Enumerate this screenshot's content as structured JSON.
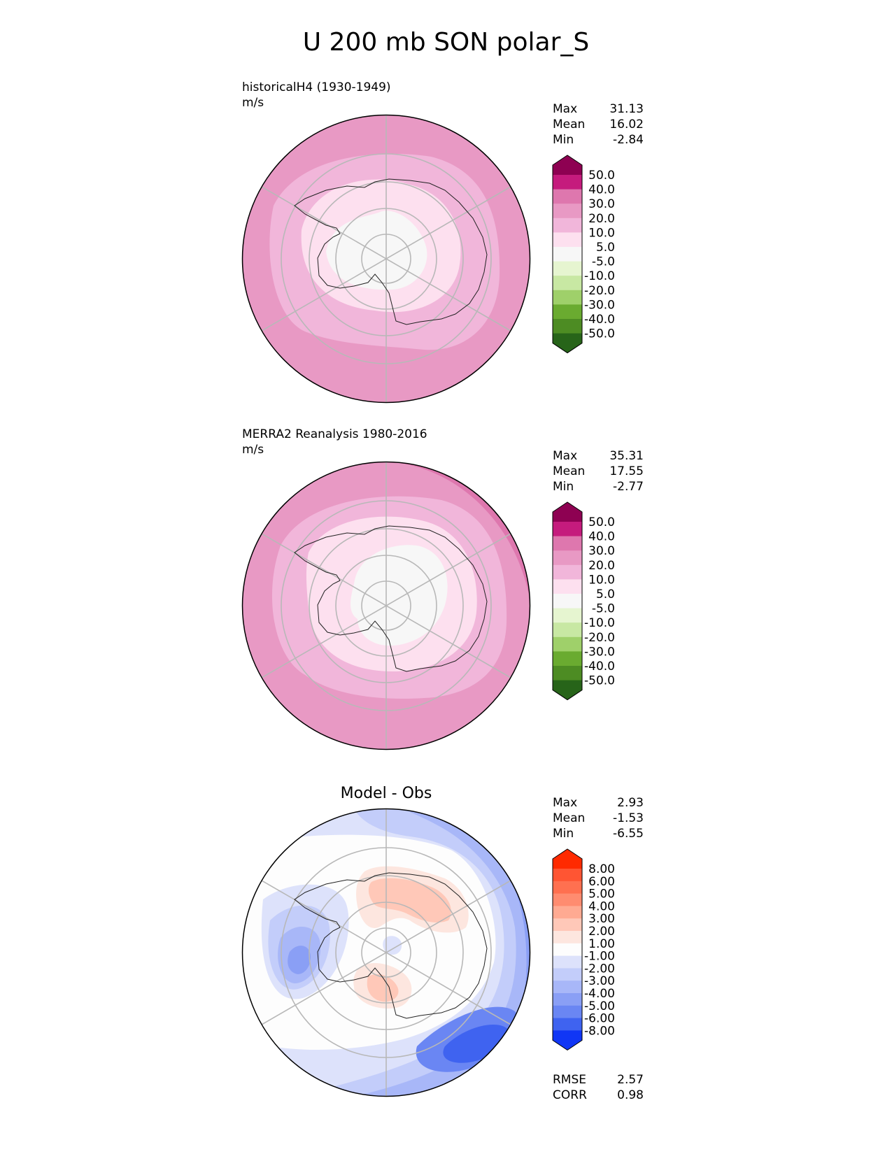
{
  "figure_title": "U 200 mb SON polar_S",
  "panels": {
    "model": {
      "title": "historicalH4 (1930-1949)",
      "units": "m/s",
      "stats": [
        {
          "label": "Max",
          "value": "31.13"
        },
        {
          "label": "Mean",
          "value": "16.02"
        },
        {
          "label": "Min",
          "value": "-2.84"
        }
      ]
    },
    "obs": {
      "title": "MERRA2 Reanalysis 1980-2016",
      "units": "m/s",
      "stats": [
        {
          "label": "Max",
          "value": "35.31"
        },
        {
          "label": "Mean",
          "value": "17.55"
        },
        {
          "label": "Min",
          "value": "-2.77"
        }
      ]
    },
    "diff": {
      "title": "Model - Obs",
      "stats": [
        {
          "label": "Max",
          "value": "2.93"
        },
        {
          "label": "Mean",
          "value": "-1.53"
        },
        {
          "label": "Min",
          "value": "-6.55"
        }
      ],
      "metrics": [
        {
          "label": "RMSE",
          "value": "2.57"
        },
        {
          "label": "CORR",
          "value": "0.98"
        }
      ]
    }
  },
  "colorbars": {
    "main": {
      "labels": [
        "50.0",
        "40.0",
        "30.0",
        "20.0",
        "10.0",
        "5.0",
        "-5.0",
        "-10.0",
        "-20.0",
        "-30.0",
        "-40.0",
        "-50.0"
      ],
      "colors": [
        "#8e0152",
        "#c51b7d",
        "#de77ae",
        "#e899c4",
        "#f1b6da",
        "#fde0ef",
        "#f7f7f7",
        "#e6f5d0",
        "#c8e8a3",
        "#9fd06a",
        "#6aab30",
        "#4d8c23",
        "#276419"
      ]
    },
    "diff": {
      "labels": [
        "8.00",
        "6.00",
        "5.00",
        "4.00",
        "3.00",
        "2.00",
        "1.00",
        "-1.00",
        "-2.00",
        "-3.00",
        "-4.00",
        "-5.00",
        "-6.00",
        "-8.00"
      ],
      "colors": [
        "#ff2a00",
        "#ff5533",
        "#ff7050",
        "#ff8c70",
        "#ffaa92",
        "#ffc8b8",
        "#fde6df",
        "#fdfdfd",
        "#dde2fb",
        "#c3cdfa",
        "#a8b7f8",
        "#8a9ff5",
        "#6a86f3",
        "#3f63f0",
        "#1036f5"
      ]
    }
  },
  "chart_data": [
    {
      "type": "heatmap",
      "title": "historicalH4 (1930-1949)",
      "projection": "south polar stereographic",
      "units": "m/s",
      "levels": [
        -50,
        -40,
        -30,
        -20,
        -10,
        -5,
        5,
        10,
        20,
        30,
        40,
        50
      ],
      "stats": {
        "max": 31.13,
        "mean": 16.02,
        "min": -2.84
      },
      "contour_bands": [
        {
          "range": "20 to 30",
          "color": "#e899c4"
        },
        {
          "range": "10 to 20",
          "color": "#f1b6da"
        },
        {
          "range": "5 to 10",
          "color": "#fde0ef"
        },
        {
          "range": "-5 to 5",
          "color": "#f7f7f7"
        }
      ]
    },
    {
      "type": "heatmap",
      "title": "MERRA2 Reanalysis 1980-2016",
      "projection": "south polar stereographic",
      "units": "m/s",
      "levels": [
        -50,
        -40,
        -30,
        -20,
        -10,
        -5,
        5,
        10,
        20,
        30,
        40,
        50
      ],
      "stats": {
        "max": 35.31,
        "mean": 17.55,
        "min": -2.77
      },
      "contour_bands": [
        {
          "range": "30 to 40",
          "color": "#de77ae"
        },
        {
          "range": "20 to 30",
          "color": "#e899c4"
        },
        {
          "range": "10 to 20",
          "color": "#f1b6da"
        },
        {
          "range": "5 to 10",
          "color": "#fde0ef"
        },
        {
          "range": "-5 to 5",
          "color": "#f7f7f7"
        }
      ]
    },
    {
      "type": "heatmap",
      "title": "Model - Obs",
      "projection": "south polar stereographic",
      "levels": [
        -8,
        -6,
        -5,
        -4,
        -3,
        -2,
        -1,
        1,
        2,
        3,
        4,
        5,
        6,
        8
      ],
      "stats": {
        "max": 2.93,
        "mean": -1.53,
        "min": -6.55,
        "rmse": 2.57,
        "corr": 0.98
      },
      "contour_bands": [
        {
          "range": "-1 to 1",
          "color": "#fdfdfd"
        },
        {
          "range": "-2 to -1",
          "color": "#dde2fb"
        },
        {
          "range": "-3 to -2",
          "color": "#c3cdfa"
        },
        {
          "range": "-4 to -3",
          "color": "#a8b7f8"
        },
        {
          "range": "-5 to -4",
          "color": "#8a9ff5"
        },
        {
          "range": "-6 to -5",
          "color": "#6a86f3"
        },
        {
          "range": "1 to 2",
          "color": "#fde6df"
        },
        {
          "range": "2 to 3",
          "color": "#ffc8b8"
        }
      ]
    }
  ]
}
